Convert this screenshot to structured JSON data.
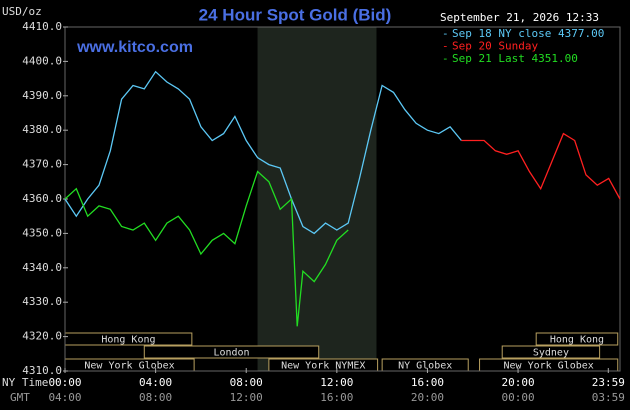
{
  "chart_data": {
    "type": "line",
    "title": "24 Hour Spot Gold (Bid)",
    "subtitle": "www.kitco.com",
    "timestamp": "September 21, 2026 12:33",
    "y_label": "USD/oz",
    "x_label": "NY Time",
    "x2_label": "GMT",
    "ylim": [
      4310,
      4410
    ],
    "yticks": [
      {
        "value": 4310,
        "label": "4310.0"
      },
      {
        "value": 4320,
        "label": "4320.0"
      },
      {
        "value": 4330,
        "label": "4330.0"
      },
      {
        "value": 4340,
        "label": "4340.0"
      },
      {
        "value": 4350,
        "label": "4350.0"
      },
      {
        "value": 4360,
        "label": "4360.0"
      },
      {
        "value": 4370,
        "label": "4370.0"
      },
      {
        "value": 4380,
        "label": "4380.0"
      },
      {
        "value": 4390,
        "label": "4390.0"
      },
      {
        "value": 4400,
        "label": "4400.0"
      },
      {
        "value": 4410,
        "label": "4410.0"
      }
    ],
    "xlim": [
      0,
      24.5
    ],
    "xticks": [
      {
        "value": 0,
        "label": "00:00"
      },
      {
        "value": 4,
        "label": "04:00"
      },
      {
        "value": 8,
        "label": "08:00"
      },
      {
        "value": 12,
        "label": "12:00"
      },
      {
        "value": 16,
        "label": "16:00"
      },
      {
        "value": 20,
        "label": "20:00"
      },
      {
        "value": 23.983,
        "label": "23:59"
      }
    ],
    "xticks_gmt": [
      "04:00",
      "08:00",
      "12:00",
      "16:00",
      "20:00",
      "00:00",
      "03:59"
    ],
    "grid": false,
    "highlight": [
      8.5,
      13.75
    ],
    "sessions": [
      {
        "label": "Hong Kong",
        "start": 0,
        "end": 5.6
      },
      {
        "label": "London",
        "start": 3.5,
        "end": 11.2
      },
      {
        "label": "New York Globex",
        "start": 0,
        "end": 5.7
      },
      {
        "label": "New York NYMEX",
        "start": 9,
        "end": 13.8
      },
      {
        "label": "NY Globex",
        "start": 14,
        "end": 17.8
      },
      {
        "label": "Hong Kong",
        "start": 20.8,
        "end": 24.4
      },
      {
        "label": "Sydney",
        "start": 19.3,
        "end": 23.6
      },
      {
        "label": "New York Globex",
        "start": 18.3,
        "end": 24.4
      }
    ],
    "series": [
      {
        "name": "Sep 18 NY close 4377.00",
        "color": "#5cc8f5",
        "x": [
          0,
          0.5,
          1,
          1.5,
          2,
          2.5,
          3,
          3.5,
          4,
          4.5,
          5,
          5.5,
          6,
          6.5,
          7,
          7.5,
          8,
          8.5,
          9,
          9.5,
          10,
          10.5,
          11,
          11.5,
          12,
          12.5,
          13,
          13.5,
          14,
          14.5,
          15,
          15.5,
          16,
          16.5,
          17,
          17.5
        ],
        "values": [
          4360,
          4355,
          4360,
          4364,
          4374,
          4389,
          4393,
          4392,
          4397,
          4394,
          4392,
          4389,
          4381,
          4377,
          4379,
          4384,
          4377,
          4372,
          4370,
          4369,
          4360,
          4352,
          4350,
          4353,
          4351,
          4353,
          4366,
          4380,
          4393,
          4391,
          4386,
          4382,
          4380,
          4379,
          4381,
          4377
        ]
      },
      {
        "name": "Sep 20 Sunday",
        "color": "#ff2020",
        "x": [
          17.5,
          18,
          18.5,
          19,
          19.5,
          20,
          20.5,
          21,
          21.5,
          22,
          22.5,
          23,
          23.5,
          24,
          24.5
        ],
        "values": [
          4377,
          4377,
          4377,
          4374,
          4373,
          4374,
          4368,
          4363,
          4371,
          4379,
          4377,
          4367,
          4364,
          4366,
          4360
        ]
      },
      {
        "name": "Sep 21 Last 4351.00",
        "color": "#22dd22",
        "x": [
          0,
          0.5,
          1,
          1.5,
          2,
          2.5,
          3,
          3.5,
          4,
          4.5,
          5,
          5.5,
          6,
          6.5,
          7,
          7.5,
          8,
          8.5,
          9,
          9.5,
          10,
          10.25,
          10.5,
          11,
          11.5,
          12,
          12.5
        ],
        "values": [
          4360,
          4363,
          4355,
          4358,
          4357,
          4352,
          4351,
          4353,
          4348,
          4353,
          4355,
          4351,
          4344,
          4348,
          4350,
          4347,
          4358,
          4368,
          4365,
          4357,
          4360,
          4323,
          4339,
          4336,
          4341,
          4348,
          4351
        ]
      }
    ]
  }
}
